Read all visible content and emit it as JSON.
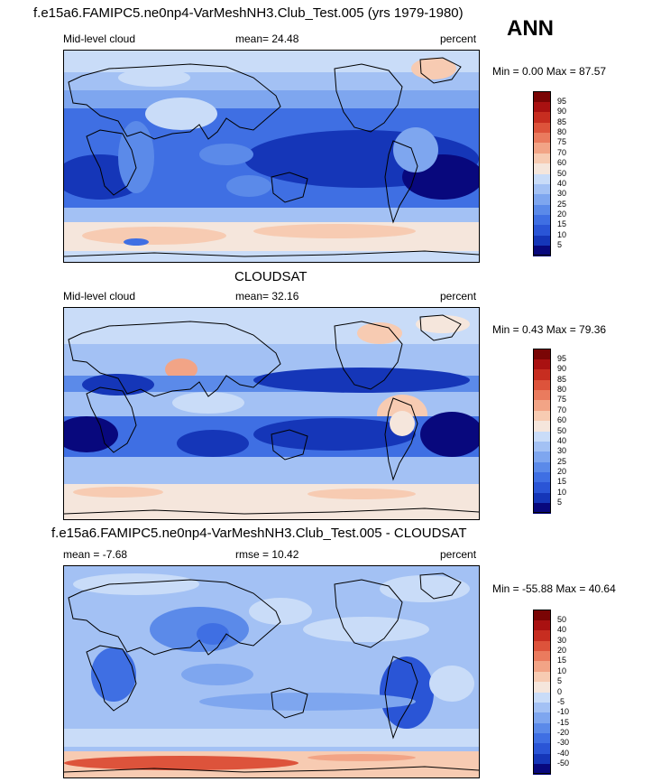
{
  "title": "f.e15a6.FAMIPC5.ne0np4-VarMeshNH3.Club_Test.005 (yrs 1979-1980)",
  "season": "ANN",
  "panels": [
    {
      "id": "model",
      "left_label": "Mid-level cloud",
      "center_label": "mean=  24.48",
      "right_label": "percent",
      "minmax": "Min =   0.00 Max =  87.57"
    },
    {
      "id": "obs",
      "title": "CLOUDSAT",
      "left_label": "Mid-level cloud",
      "center_label": "mean=  32.16",
      "right_label": "percent",
      "minmax": "Min =   0.43 Max =  79.36"
    },
    {
      "id": "diff",
      "title": "f.e15a6.FAMIPC5.ne0np4-VarMeshNH3.Club_Test.005 - CLOUDSAT",
      "left_label": "mean =  -7.68",
      "center_label": "rmse =  10.42",
      "right_label": "percent",
      "minmax": "Min = -55.88 Max =  40.64"
    }
  ],
  "chart_data": [
    {
      "type": "heatmap",
      "field": "Mid-level cloud",
      "units": "percent",
      "mean": 24.48,
      "min": 0.0,
      "max": 87.57,
      "colorbar_levels": [
        5,
        10,
        15,
        20,
        25,
        30,
        40,
        50,
        60,
        70,
        75,
        80,
        85,
        90,
        95
      ],
      "colorbar_colors": [
        "#08087d",
        "#1536b8",
        "#2a55d6",
        "#3f6fe3",
        "#5b8ae9",
        "#7ea6ef",
        "#a3c1f4",
        "#c9dcf8",
        "#f5e6dc",
        "#f7cbb2",
        "#f2a486",
        "#ea7b5e",
        "#dd533b",
        "#c72d20",
        "#a91111",
        "#7a0505"
      ]
    },
    {
      "type": "heatmap",
      "field": "Mid-level cloud",
      "source": "CLOUDSAT",
      "units": "percent",
      "mean": 32.16,
      "min": 0.43,
      "max": 79.36,
      "colorbar_levels": [
        5,
        10,
        15,
        20,
        25,
        30,
        40,
        50,
        60,
        70,
        75,
        80,
        85,
        90,
        95
      ],
      "colorbar_colors": [
        "#08087d",
        "#1536b8",
        "#2a55d6",
        "#3f6fe3",
        "#5b8ae9",
        "#7ea6ef",
        "#a3c1f4",
        "#c9dcf8",
        "#f5e6dc",
        "#f7cbb2",
        "#f2a486",
        "#ea7b5e",
        "#dd533b",
        "#c72d20",
        "#a91111",
        "#7a0505"
      ]
    },
    {
      "type": "heatmap",
      "field": "Mid-level cloud difference (model - CLOUDSAT)",
      "units": "percent",
      "mean": -7.68,
      "rmse": 10.42,
      "min": -55.88,
      "max": 40.64,
      "colorbar_levels": [
        -50,
        -40,
        -30,
        -20,
        -15,
        -10,
        -5,
        0,
        5,
        10,
        15,
        20,
        30,
        40,
        50
      ],
      "colorbar_colors": [
        "#08087d",
        "#1536b8",
        "#2a55d6",
        "#3f6fe3",
        "#5b8ae9",
        "#7ea6ef",
        "#a3c1f4",
        "#c9dcf8",
        "#f5e6dc",
        "#f7cbb2",
        "#f2a486",
        "#ea7b5e",
        "#dd533b",
        "#c72d20",
        "#a91111",
        "#7a0505"
      ]
    }
  ]
}
